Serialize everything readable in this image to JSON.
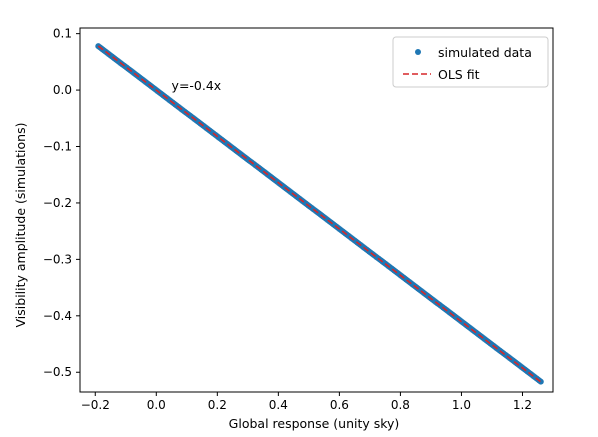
{
  "chart_data": {
    "type": "scatter",
    "title": "",
    "xlabel": "Global response (unity sky)",
    "ylabel": "Visibility amplitude (simulations)",
    "xlim": [
      -0.25,
      1.3
    ],
    "ylim": [
      -0.535,
      0.11
    ],
    "xticks": [
      -0.2,
      0.0,
      0.2,
      0.4,
      0.6,
      0.8,
      1.0,
      1.2
    ],
    "yticks": [
      0.1,
      0.0,
      -0.1,
      -0.2,
      -0.3,
      -0.4,
      -0.5
    ],
    "xtick_labels": [
      "−0.2",
      "0.0",
      "0.2",
      "0.4",
      "0.6",
      "0.8",
      "1.0",
      "1.2"
    ],
    "ytick_labels": [
      "0.1",
      "0.0",
      "−0.1",
      "−0.2",
      "−0.3",
      "−0.4",
      "−0.5"
    ],
    "grid": false,
    "legend_position": "top-right",
    "series": [
      {
        "name": "simulated data",
        "kind": "scatter",
        "color": "#1f77b4",
        "x_range": [
          -0.19,
          1.26
        ],
        "slope": -0.41,
        "intercept": 0.0
      },
      {
        "name": "OLS fit",
        "kind": "line",
        "style": "dashed",
        "color": "#d62728",
        "x": [
          -0.19,
          1.26
        ],
        "y": [
          0.078,
          -0.517
        ]
      }
    ],
    "annotations": [
      {
        "text": "y=-0.4x",
        "x": 0.05,
        "y": 0.0
      }
    ]
  }
}
